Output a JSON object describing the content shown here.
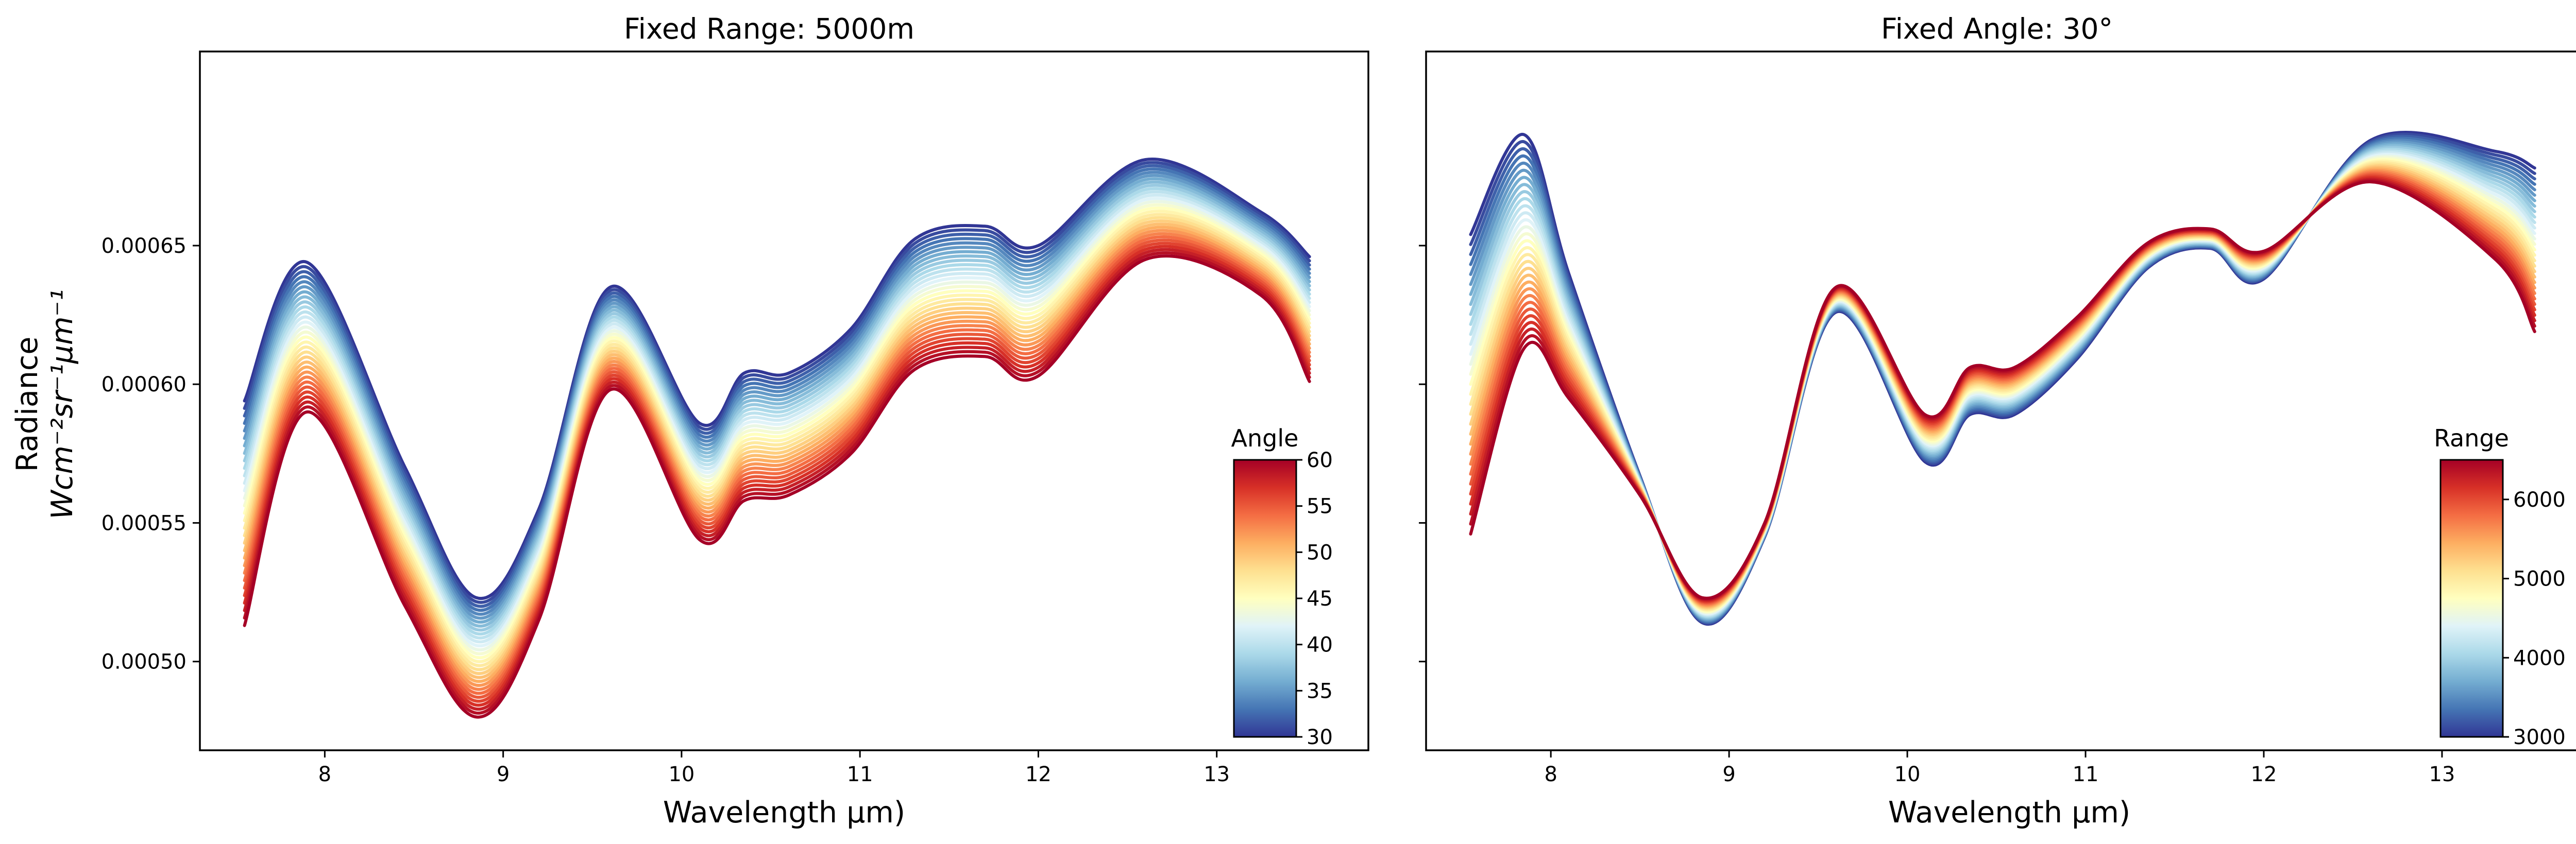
{
  "chart_data": [
    {
      "type": "line",
      "title": "Fixed Range: 5000m",
      "xlabel": "Wavelength μm)",
      "ylabel_line1": "Radiance",
      "ylabel_line2": "Wcm⁻²sr⁻¹μm⁻¹",
      "xlim": [
        7.3,
        13.85
      ],
      "ylim": [
        0.000468,
        0.00072
      ],
      "xticks": [
        8,
        9,
        10,
        11,
        12,
        13
      ],
      "xtick_labels": [
        "8",
        "9",
        "10",
        "11",
        "12",
        "13"
      ],
      "yticks": [
        0.0005,
        0.00055,
        0.0006,
        0.00065
      ],
      "ytick_labels": [
        "0.00050",
        "0.00055",
        "0.00060",
        "0.00065"
      ],
      "colorbar": {
        "title": "Angle",
        "min": 30,
        "max": 60,
        "ticks": [
          30,
          35,
          40,
          45,
          50,
          55,
          60
        ],
        "tick_labels": [
          "30",
          "35",
          "40",
          "45",
          "50",
          "55",
          "60"
        ],
        "colormap": "RdYlBu_r"
      },
      "n_series": 31,
      "series_param": "angle",
      "series_param_range": [
        30,
        60
      ],
      "x": [
        7.55,
        7.9,
        8.45,
        8.85,
        9.2,
        9.6,
        10.1,
        10.35,
        10.6,
        10.95,
        11.3,
        11.7,
        12.0,
        12.6,
        13.25,
        13.52
      ],
      "series_low_param": [
        0.000594,
        0.000644,
        0.00057,
        0.000523,
        0.000555,
        0.000635,
        0.000586,
        0.000604,
        0.000604,
        0.00062,
        0.000652,
        0.000657,
        0.00065,
        0.000681,
        0.000662,
        0.000646
      ],
      "series_high_param": [
        0.000513,
        0.00059,
        0.00052,
        0.00048,
        0.000515,
        0.000598,
        0.000544,
        0.000558,
        0.00056,
        0.000575,
        0.000605,
        0.00061,
        0.000603,
        0.000645,
        0.000632,
        0.000601
      ]
    },
    {
      "type": "line",
      "title": "Fixed Angle: 30°",
      "xlabel": "Wavelength μm)",
      "xlim": [
        7.3,
        13.85
      ],
      "ylim": [
        0.000468,
        0.00072
      ],
      "xticks": [
        8,
        9,
        10,
        11,
        12,
        13
      ],
      "xtick_labels": [
        "8",
        "9",
        "10",
        "11",
        "12",
        "13"
      ],
      "yticks": [
        0.0005,
        0.00055,
        0.0006,
        0.00065
      ],
      "colorbar": {
        "title": "Range",
        "min": 3000,
        "max": 6500,
        "ticks": [
          3000,
          4000,
          5000,
          6000
        ],
        "tick_labels": [
          "3000",
          "4000",
          "5000",
          "6000"
        ],
        "colormap": "RdYlBu_r"
      },
      "n_series": 31,
      "series_param": "range",
      "series_param_range": [
        3000,
        6500
      ],
      "x": [
        7.55,
        7.85,
        8.1,
        8.5,
        8.85,
        9.2,
        9.6,
        10.1,
        10.35,
        10.6,
        10.95,
        11.35,
        11.7,
        12.0,
        12.6,
        13.3,
        13.52
      ],
      "series_low_param": [
        0.000654,
        0.00069,
        0.00064,
        0.000567,
        0.000514,
        0.000545,
        0.000626,
        0.000572,
        0.000589,
        0.000589,
        0.000609,
        0.000642,
        0.000649,
        0.000638,
        0.000688,
        0.000684,
        0.000678
      ],
      "series_high_param": [
        0.000546,
        0.000613,
        0.000595,
        0.00056,
        0.000523,
        0.00055,
        0.000635,
        0.000589,
        0.000606,
        0.000606,
        0.000624,
        0.000651,
        0.000656,
        0.000648,
        0.000673,
        0.000645,
        0.000619
      ]
    }
  ]
}
